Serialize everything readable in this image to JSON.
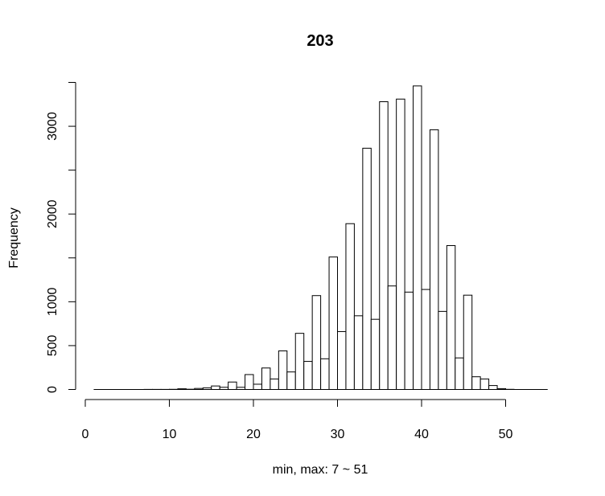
{
  "chart_data": {
    "type": "bar",
    "title": "203",
    "xlabel": "min, max:  7  ~  51",
    "ylabel": "Frequency",
    "xlim": [
      1,
      55
    ],
    "ylim": [
      0,
      3500
    ],
    "x_ticks": [
      0,
      10,
      20,
      30,
      40,
      50
    ],
    "y_ticks": [
      0,
      500,
      1000,
      1500,
      2000,
      2500,
      3000,
      3500
    ],
    "y_tick_labels_shown": [
      "0",
      "500",
      "1000",
      "",
      "2000",
      "",
      "3000",
      ""
    ],
    "bin_width": 1,
    "bin_starts": [
      7,
      8,
      9,
      10,
      11,
      12,
      13,
      14,
      15,
      16,
      17,
      18,
      19,
      20,
      21,
      22,
      23,
      24,
      25,
      26,
      27,
      28,
      29,
      30,
      31,
      32,
      33,
      34,
      35,
      36,
      37,
      38,
      39,
      40,
      41,
      42,
      43,
      44,
      45,
      46,
      47,
      48,
      49,
      50
    ],
    "values": [
      1,
      1,
      1,
      2,
      8,
      3,
      12,
      18,
      40,
      25,
      85,
      25,
      170,
      60,
      245,
      120,
      440,
      200,
      640,
      320,
      1070,
      350,
      1510,
      660,
      1890,
      840,
      2750,
      800,
      3280,
      1180,
      3310,
      1110,
      3460,
      1140,
      2960,
      890,
      1640,
      360,
      1075,
      145,
      120,
      45,
      10,
      2
    ],
    "grid": false,
    "legend": "none"
  }
}
